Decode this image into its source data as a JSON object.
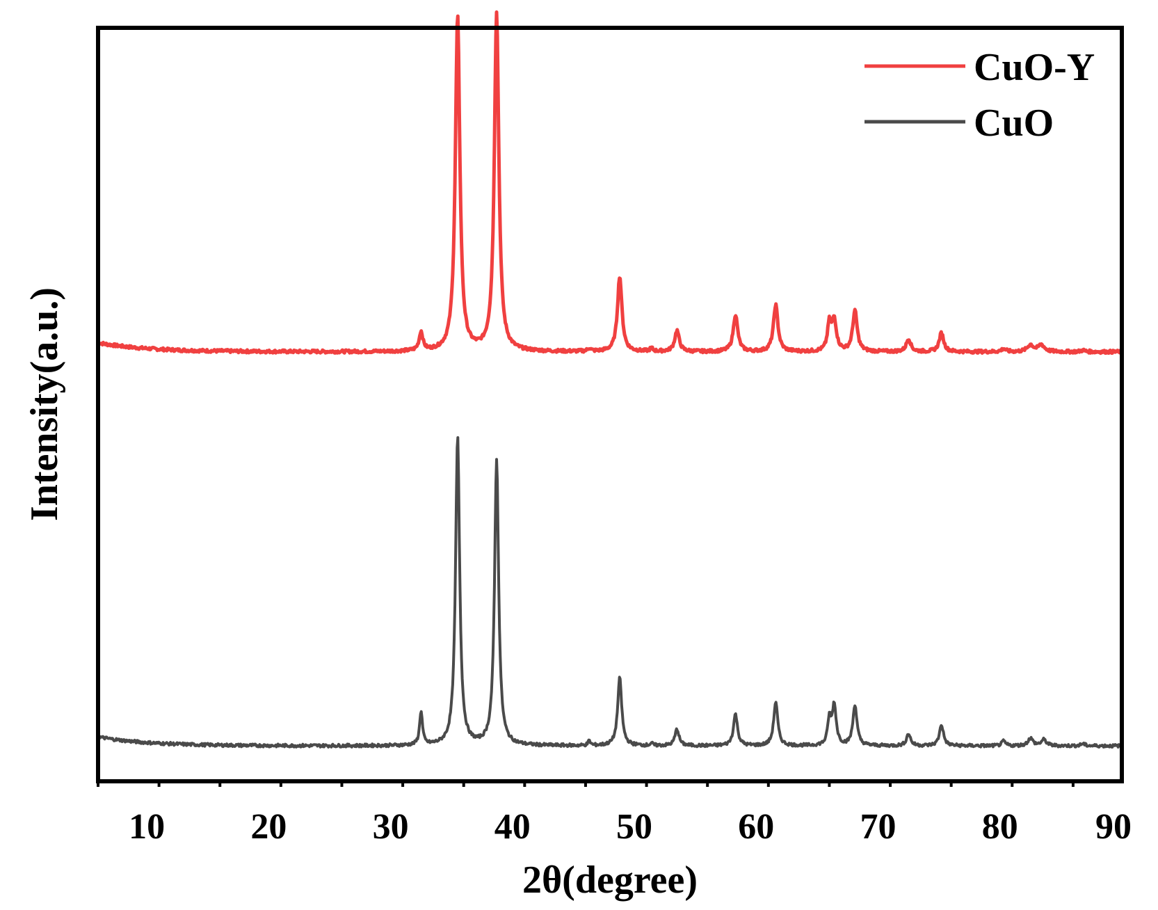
{
  "chart_data": {
    "type": "line",
    "xlabel": "2θ(degree)",
    "ylabel": "Intensity(a.u.)",
    "xlim": [
      6,
      90
    ],
    "xticks": [
      10,
      20,
      30,
      40,
      50,
      60,
      70,
      80,
      90
    ],
    "y_ticks_shown": false,
    "grid": false,
    "legend": {
      "placement": "top-right"
    },
    "peaks_2theta": [
      32.5,
      35.5,
      38.7,
      46.3,
      48.8,
      51.4,
      53.5,
      58.3,
      61.6,
      66.0,
      66.4,
      68.1,
      72.5,
      75.2,
      80.3,
      82.5,
      83.6,
      86.8
    ],
    "series": [
      {
        "name": "CuO-Y",
        "color": "#f04040",
        "baseline": 0.57,
        "peaks": [
          {
            "x": 32.5,
            "h": 0.025,
            "w": 0.18
          },
          {
            "x": 35.5,
            "h": 0.445,
            "w": 0.22
          },
          {
            "x": 38.7,
            "h": 0.45,
            "w": 0.22
          },
          {
            "x": 46.3,
            "h": 0.004,
            "w": 0.15
          },
          {
            "x": 48.8,
            "h": 0.1,
            "w": 0.22
          },
          {
            "x": 51.4,
            "h": 0.004,
            "w": 0.15
          },
          {
            "x": 53.5,
            "h": 0.028,
            "w": 0.22
          },
          {
            "x": 58.3,
            "h": 0.049,
            "w": 0.22
          },
          {
            "x": 61.6,
            "h": 0.062,
            "w": 0.22
          },
          {
            "x": 66.0,
            "h": 0.035,
            "w": 0.18
          },
          {
            "x": 66.4,
            "h": 0.041,
            "w": 0.22
          },
          {
            "x": 68.1,
            "h": 0.054,
            "w": 0.22
          },
          {
            "x": 72.5,
            "h": 0.017,
            "w": 0.22
          },
          {
            "x": 75.2,
            "h": 0.025,
            "w": 0.22
          },
          {
            "x": 80.3,
            "h": 0.004,
            "w": 0.2
          },
          {
            "x": 82.5,
            "h": 0.009,
            "w": 0.3
          },
          {
            "x": 83.4,
            "h": 0.009,
            "w": 0.3
          },
          {
            "x": 86.8,
            "h": 0.002,
            "w": 0.2
          }
        ]
      },
      {
        "name": "CuO",
        "color": "#4a4a4a",
        "baseline": 0.047,
        "peaks": [
          {
            "x": 32.5,
            "h": 0.045,
            "w": 0.14
          },
          {
            "x": 35.5,
            "h": 0.41,
            "w": 0.2
          },
          {
            "x": 38.7,
            "h": 0.38,
            "w": 0.2
          },
          {
            "x": 46.3,
            "h": 0.006,
            "w": 0.12
          },
          {
            "x": 48.8,
            "h": 0.09,
            "w": 0.2
          },
          {
            "x": 51.4,
            "h": 0.003,
            "w": 0.12
          },
          {
            "x": 53.5,
            "h": 0.022,
            "w": 0.2
          },
          {
            "x": 58.3,
            "h": 0.042,
            "w": 0.2
          },
          {
            "x": 61.6,
            "h": 0.058,
            "w": 0.2
          },
          {
            "x": 66.0,
            "h": 0.033,
            "w": 0.16
          },
          {
            "x": 66.4,
            "h": 0.053,
            "w": 0.2
          },
          {
            "x": 68.1,
            "h": 0.054,
            "w": 0.2
          },
          {
            "x": 72.5,
            "h": 0.016,
            "w": 0.2
          },
          {
            "x": 75.2,
            "h": 0.028,
            "w": 0.2
          },
          {
            "x": 80.3,
            "h": 0.006,
            "w": 0.18
          },
          {
            "x": 82.5,
            "h": 0.01,
            "w": 0.25
          },
          {
            "x": 83.6,
            "h": 0.008,
            "w": 0.25
          },
          {
            "x": 86.8,
            "h": 0.003,
            "w": 0.18
          }
        ]
      }
    ]
  }
}
